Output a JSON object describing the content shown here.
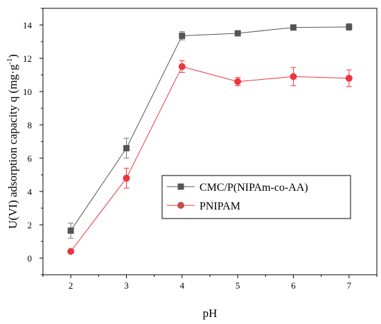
{
  "chart_data": {
    "type": "line",
    "xlabel": "pH",
    "ylabel": "U(VI) adsorption capacity q (mg·g",
    "ylabel_sup": "-1",
    "ylabel_close": ")",
    "xlim": [
      1.5,
      7.5
    ],
    "ylim": [
      -1,
      15
    ],
    "x_ticks": [
      2,
      3,
      4,
      5,
      6,
      7
    ],
    "y_ticks": [
      0,
      2,
      4,
      6,
      8,
      10,
      12,
      14
    ],
    "x_tick_labels": [
      "2",
      "3",
      "4",
      "5",
      "6",
      "7"
    ],
    "y_tick_labels": [
      "0",
      "2",
      "4",
      "6",
      "8",
      "10",
      "12",
      "14"
    ],
    "grid": false,
    "legend_position": "center-right",
    "x": [
      2,
      3,
      4,
      5,
      6,
      7
    ],
    "series": [
      {
        "name": "CMC/P(NIPAm-co-AA)",
        "values": [
          1.65,
          6.6,
          13.35,
          13.5,
          13.85,
          13.88
        ],
        "errors": [
          0.45,
          0.6,
          0.25,
          0.1,
          0.1,
          0.2
        ],
        "color": "#555555",
        "marker": "square"
      },
      {
        "name": "PNIPAM",
        "values": [
          0.4,
          4.8,
          11.5,
          10.6,
          10.9,
          10.8
        ],
        "errors": [
          0.1,
          0.6,
          0.35,
          0.25,
          0.55,
          0.5
        ],
        "color": "#e8383d",
        "marker": "circle"
      }
    ]
  }
}
